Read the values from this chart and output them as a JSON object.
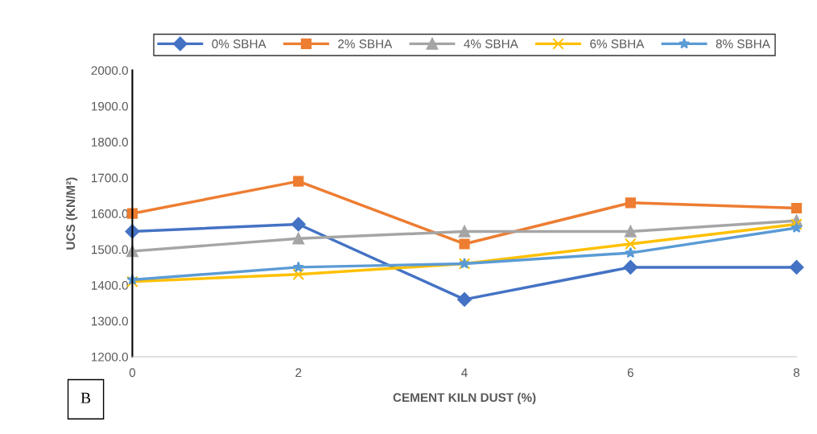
{
  "chart_data": {
    "type": "line",
    "xlabel": "CEMENT KILN DUST (%)",
    "ylabel": "UCS (KN/M²)",
    "x": [
      0,
      2,
      4,
      6,
      8
    ],
    "xlim": [
      0,
      8
    ],
    "xticks": [
      0,
      2,
      4,
      6,
      8
    ],
    "ylim": [
      1200,
      2000
    ],
    "yticks": [
      {
        "value": 1200,
        "label": "1200.0"
      },
      {
        "value": 1300,
        "label": "1300.0"
      },
      {
        "value": 1400,
        "label": "1400.0"
      },
      {
        "value": 1500,
        "label": "1500.0"
      },
      {
        "value": 1600,
        "label": "1600.0"
      },
      {
        "value": 1700,
        "label": "1700.0"
      },
      {
        "value": 1800,
        "label": "1800.0"
      },
      {
        "value": 1900,
        "label": "1900.0"
      },
      {
        "value": 2000,
        "label": "2000.0"
      }
    ],
    "grid": false,
    "legend": "top",
    "line_style": "solid",
    "annotations": [
      "B"
    ],
    "series": [
      {
        "name": "0% SBHA",
        "color": "#4472c4",
        "marker": "diamond",
        "values": [
          1550,
          1570,
          1360,
          1450,
          1450
        ]
      },
      {
        "name": "2% SBHA",
        "color": "#ed7d31",
        "marker": "square",
        "values": [
          1600,
          1690,
          1515,
          1630,
          1615
        ]
      },
      {
        "name": "4% SBHA",
        "color": "#a5a5a5",
        "marker": "triangle",
        "values": [
          1495,
          1530,
          1550,
          1550,
          1580
        ]
      },
      {
        "name": "6% SBHA",
        "color": "#ffc000",
        "marker": "cross",
        "values": [
          1410,
          1430,
          1460,
          1515,
          1570
        ]
      },
      {
        "name": "8% SBHA",
        "color": "#5b9bd5",
        "marker": "star",
        "values": [
          1415,
          1450,
          1460,
          1490,
          1560
        ]
      }
    ]
  }
}
